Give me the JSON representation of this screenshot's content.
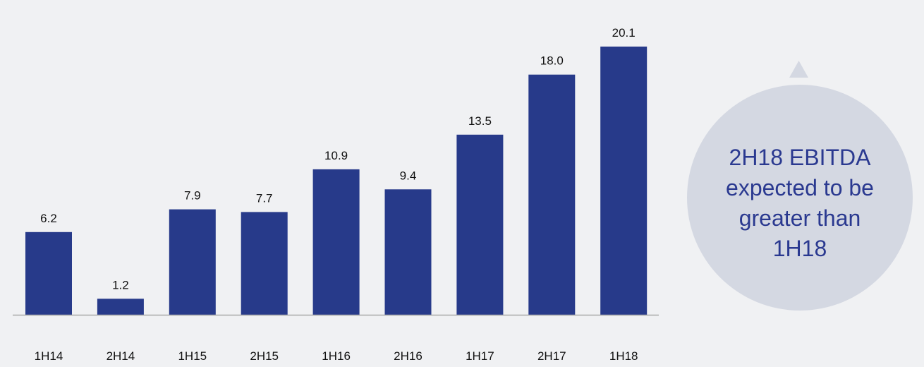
{
  "chart_data": {
    "type": "bar",
    "categories": [
      "1H14",
      "2H14",
      "1H15",
      "2H15",
      "1H16",
      "2H16",
      "1H17",
      "2H17",
      "1H18"
    ],
    "values": [
      6.2,
      1.2,
      7.9,
      7.7,
      10.9,
      9.4,
      13.5,
      18.0,
      20.1
    ],
    "value_labels": [
      "6.2",
      "1.2",
      "7.9",
      "7.7",
      "10.9",
      "9.4",
      "13.5",
      "18.0",
      "20.1"
    ],
    "title": "",
    "xlabel": "",
    "ylabel": "",
    "ylim": [
      0,
      20.1
    ],
    "grid": false,
    "legend": "none"
  },
  "callout": {
    "lines": [
      "2H18 EBITDA",
      "expected to be",
      "greater than",
      "1H18"
    ]
  },
  "colors": {
    "bar": "#273a8a",
    "axis": "#a9a9a9",
    "callout_fill": "#d4d8e2",
    "callout_text": "#2a3990",
    "background": "#f0f1f3"
  }
}
